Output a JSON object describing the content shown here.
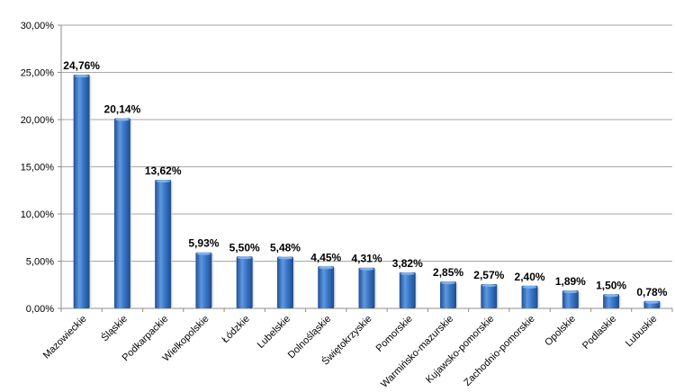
{
  "chart_data": {
    "type": "bar",
    "title": "",
    "xlabel": "",
    "ylabel": "",
    "ylim": [
      0,
      30
    ],
    "grid": true,
    "y_ticks": [
      "0,00%",
      "5,00%",
      "10,00%",
      "15,00%",
      "20,00%",
      "25,00%",
      "30,00%"
    ],
    "categories": [
      "Mazowieckie",
      "Śląskie",
      "Podkarpackie",
      "Wielkopolskie",
      "Łódzkie",
      "Lubelskie",
      "Dolnośląskie",
      "Świętokrzyskie",
      "Pomorskie",
      "Warmińsko-mazurskie",
      "Kujawsko-pomorskie",
      "Zachodnio-pomorskie",
      "Opolskie",
      "Podlaskie",
      "Lubuskie"
    ],
    "values": [
      24.76,
      20.14,
      13.62,
      5.93,
      5.5,
      5.48,
      4.45,
      4.31,
      3.82,
      2.85,
      2.57,
      2.4,
      1.89,
      1.5,
      0.78
    ],
    "data_labels": [
      "24,76%",
      "20,14%",
      "13,62%",
      "5,93%",
      "5,50%",
      "5,48%",
      "4,45%",
      "4,31%",
      "3,82%",
      "2,85%",
      "2,57%",
      "2,40%",
      "1,89%",
      "1,50%",
      "0,78%"
    ],
    "colors": {
      "bar": "#3a78c8",
      "bar_dark": "#1f4f94",
      "bar_light": "#7fb0ea",
      "grid": "#8c8c8c"
    }
  }
}
